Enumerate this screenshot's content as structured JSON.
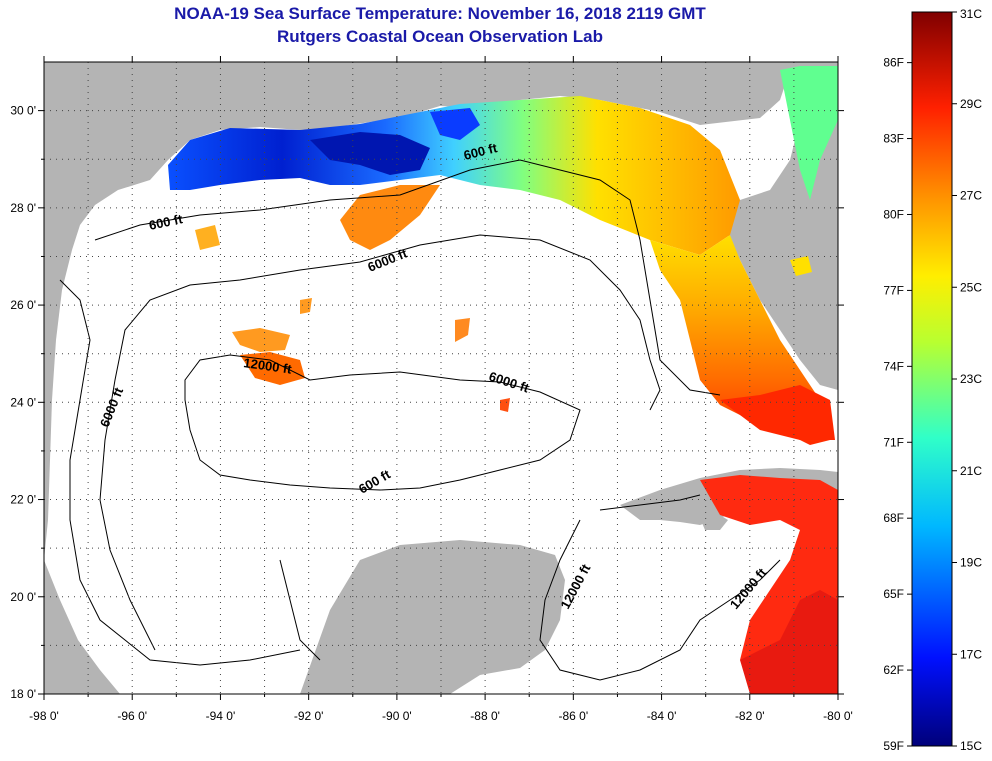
{
  "title_line1": "NOAA-19 Sea Surface Temperature:  November 16, 2018 2119 GMT",
  "title_line2": "Rutgers Coastal Ocean Observation Lab",
  "map": {
    "lon_range": [
      -98,
      -80
    ],
    "lat_range": [
      18,
      31
    ],
    "lon_ticks": [
      "-98 0'",
      "-96 0'",
      "-94 0'",
      "-92 0'",
      "-90 0'",
      "-88 0'",
      "-86 0'",
      "-84 0'",
      "-82 0'",
      "-80 0'"
    ],
    "lat_ticks": [
      "30 0'",
      "28 0'",
      "26 0'",
      "24 0'",
      "22 0'",
      "20 0'",
      "18 0'"
    ],
    "contour_labels": [
      "600 ft",
      "600 ft",
      "600 ft",
      "6000 ft",
      "6000 ft",
      "6000 ft",
      "12000 ft",
      "12000 ft",
      "12000 ft"
    ],
    "land_color": "#b4b4b4",
    "cloud_color": "#ffffff"
  },
  "colorbar": {
    "fahrenheit_labels": [
      "86F",
      "83F",
      "80F",
      "77F",
      "74F",
      "71F",
      "68F",
      "65F",
      "62F",
      "59F"
    ],
    "celsius_labels": [
      "31C",
      "29C",
      "27C",
      "25C",
      "23C",
      "21C",
      "19C",
      "17C",
      "15C"
    ],
    "range_c": [
      15,
      31
    ],
    "range_f": [
      59,
      88
    ]
  }
}
